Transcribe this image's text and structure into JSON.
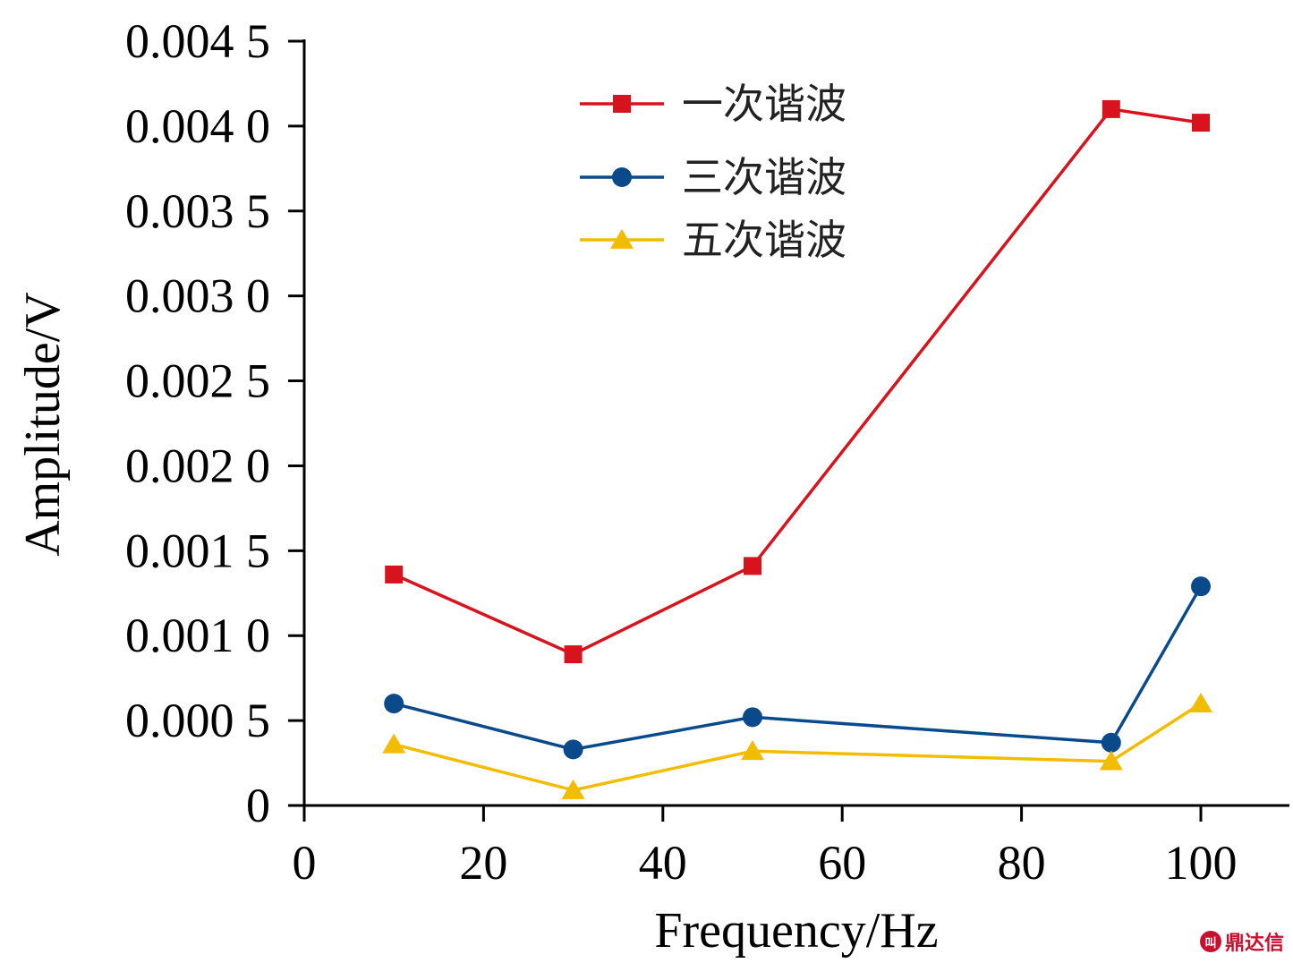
{
  "chart_data": {
    "type": "line",
    "title": "",
    "xlabel": "Frequency/Hz",
    "ylabel": "Amplitude/V",
    "xlim": [
      0,
      110
    ],
    "ylim": [
      0,
      0.0045
    ],
    "x_ticks": [
      0,
      20,
      40,
      60,
      80,
      100
    ],
    "x_tick_labels": [
      "0",
      "20",
      "40",
      "60",
      "80",
      "100"
    ],
    "y_ticks": [
      0,
      0.0005,
      0.001,
      0.0015,
      0.002,
      0.0025,
      0.003,
      0.0035,
      0.004,
      0.0045
    ],
    "y_tick_labels": [
      "0",
      "0.000 5",
      "0.001 0",
      "0.001 5",
      "0.002 0",
      "0.002 5",
      "0.003 0",
      "0.003 5",
      "0.004 0",
      "0.004 5"
    ],
    "grid": false,
    "legend_position": "top-center",
    "series": [
      {
        "name": "一次谐波",
        "color": "#d7141e",
        "marker": "square",
        "x": [
          10,
          30,
          50,
          90,
          100
        ],
        "y": [
          0.00136,
          0.00089,
          0.00141,
          0.0041,
          0.00402
        ]
      },
      {
        "name": "三次谐波",
        "color": "#0b4a8a",
        "marker": "circle",
        "x": [
          10,
          30,
          50,
          90,
          100
        ],
        "y": [
          0.0006,
          0.00033,
          0.00052,
          0.00037,
          0.00129
        ]
      },
      {
        "name": "五次谐波",
        "color": "#f2bd00",
        "marker": "triangle",
        "x": [
          10,
          30,
          50,
          90,
          100
        ],
        "y": [
          0.00036,
          9e-05,
          0.00032,
          0.00026,
          0.0006
        ]
      }
    ]
  },
  "watermark": {
    "text": "鼎达信",
    "logo": "叫"
  }
}
